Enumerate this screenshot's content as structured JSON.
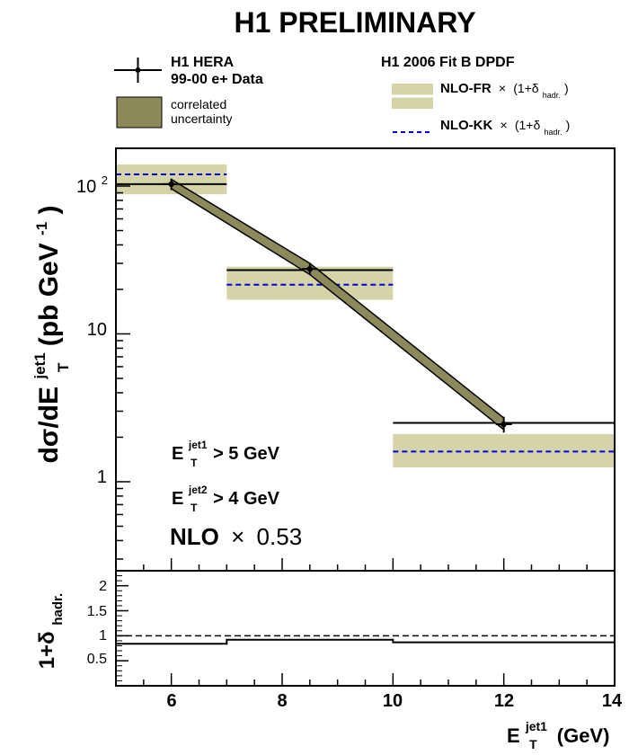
{
  "chart_data": [
    {
      "type": "scatter",
      "title": "H1 PRELIMINARY",
      "xlabel_main": "E",
      "xlabel_sup": "jet1",
      "xlabel_sub": "T",
      "xlabel_unit": "(GeV)",
      "ylabel": {
        "prefix": "dσ/dE",
        "sup": "jet1",
        "sub": "T",
        "unit": "(pb GeV",
        "unit_exp": "-1",
        "close": ")"
      },
      "xlim": [
        5,
        14
      ],
      "ylim": [
        0.25,
        180
      ],
      "yscale": "log",
      "ytick_labels": [
        "1",
        "10"
      ],
      "ytick_top": {
        "base": "10",
        "exp": "2"
      },
      "legend_left": {
        "data_label_1": "H1 HERA",
        "data_label_2": "99-00 e+ Data",
        "corr_label_1": "correlated",
        "corr_label_2": "uncertainty"
      },
      "legend_right": {
        "header": "H1 2006 Fit B DPDF",
        "fr_label": "NLO-FR",
        "kk_label": "NLO-KK",
        "times": "×",
        "factor": "(1+δ",
        "factor_sub": "hadr.",
        "factor_close": ")"
      },
      "annotations": {
        "cut1_sup": "jet1",
        "cut1_rest": "> 5 GeV",
        "cut2_sup": "jet2",
        "cut2_rest": "> 4 GeV",
        "cut_E": "E",
        "cut_T": "T",
        "nlo_label": "NLO",
        "nlo_times": "×",
        "nlo_value": "0.53"
      },
      "data_points": [
        {
          "x": 6.0,
          "y": 103,
          "yerr_low": 9,
          "yerr_high": 9,
          "corr_low": 96,
          "corr_high": 111
        },
        {
          "x": 8.5,
          "y": 27.5,
          "yerr_low": 2.2,
          "yerr_high": 2.2,
          "corr_low": 25.2,
          "corr_high": 30
        },
        {
          "x": 12.0,
          "y": 2.45,
          "yerr_low": 0.3,
          "yerr_high": 0.3,
          "corr_low": 2.25,
          "corr_high": 2.7
        }
      ],
      "series": [
        {
          "name": "NLO-FR × (1+δhadr.)",
          "bins": [
            {
              "x_low": 5,
              "x_high": 7,
              "central": 103,
              "low": 88,
              "high": 140
            },
            {
              "x_low": 7,
              "x_high": 10,
              "central": 27,
              "low": 17,
              "high": 28.5
            },
            {
              "x_low": 10,
              "x_high": 14,
              "central": 2.5,
              "low": 1.25,
              "high": 2.1
            }
          ]
        },
        {
          "name": "NLO-KK × (1+δhadr.)",
          "bins": [
            {
              "x_low": 5,
              "x_high": 7,
              "value": 120
            },
            {
              "x_low": 7,
              "x_high": 10,
              "value": 21.5
            },
            {
              "x_low": 10,
              "x_high": 14,
              "value": 1.6
            }
          ]
        }
      ],
      "colors": {
        "data_band": "#8c8a5a",
        "theory_band": "#d5d4a8",
        "kk_line": "#0000dd"
      }
    },
    {
      "type": "line",
      "ylabel": {
        "prefix": "1+δ",
        "sub": "hadr."
      },
      "xlim": [
        5,
        14
      ],
      "ylim": [
        0,
        2.3
      ],
      "xtick_labels": [
        "6",
        "8",
        "10",
        "12",
        "14"
      ],
      "ytick_labels": [
        "0.5",
        "1",
        "1.5",
        "2"
      ],
      "reference_line": 1.0,
      "bins": [
        {
          "x_low": 5,
          "x_high": 7,
          "value": 0.84
        },
        {
          "x_low": 7,
          "x_high": 10,
          "value": 0.92
        },
        {
          "x_low": 10,
          "x_high": 14,
          "value": 0.87
        }
      ]
    }
  ]
}
